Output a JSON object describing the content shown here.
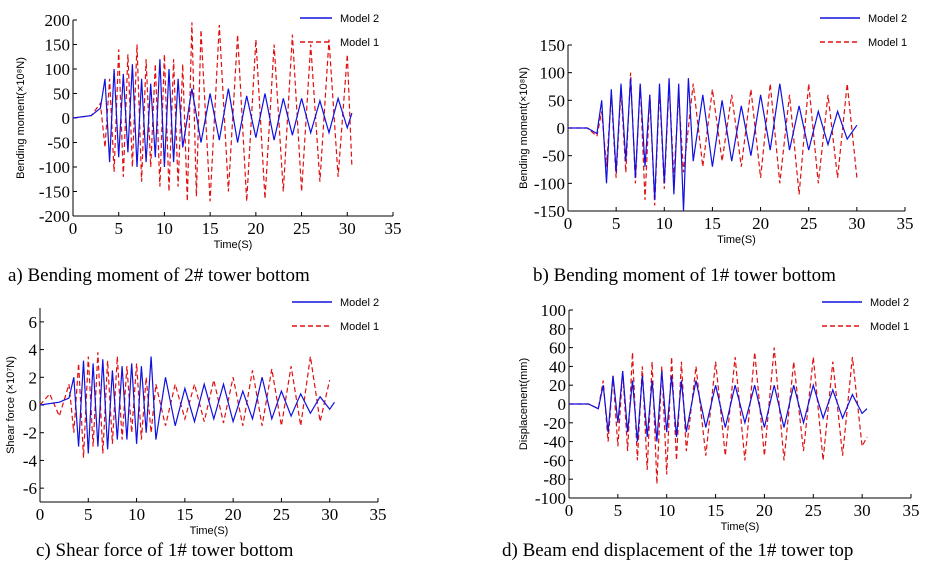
{
  "colors": {
    "model2": "#1010e0",
    "model1": "#e01010"
  },
  "legend": {
    "model2": "Model 2",
    "model1": "Model 1"
  },
  "captions": {
    "a": "a) Bending moment of 2# tower bottom",
    "b": "b) Bending moment of 1# tower bottom",
    "c": "c) Shear force of 1# tower bottom",
    "d": "d) Beam end displacement of the 1# tower top"
  },
  "chart_data": [
    {
      "id": "a",
      "type": "line",
      "xlabel": "Time(S)",
      "ylabel": "Bending moment(×10⁸N)",
      "xlim": [
        0,
        35
      ],
      "ylim": [
        -200,
        200
      ],
      "xticks": [
        0,
        5,
        10,
        15,
        20,
        25,
        30,
        35
      ],
      "yticks": [
        200,
        150,
        100,
        50,
        0,
        -50,
        -100,
        -150,
        -200
      ],
      "grid": false,
      "legend_position": "top-right",
      "series": [
        {
          "name": "Model 2",
          "style": "solid",
          "color": "#1010e0",
          "x": [
            0,
            2,
            3,
            3.5,
            4,
            4.5,
            5,
            5.5,
            6,
            6.5,
            7,
            7.5,
            8,
            8.5,
            9,
            9.5,
            10,
            10.5,
            11,
            11.5,
            12,
            13,
            14,
            15,
            16,
            17,
            18,
            19,
            20,
            21,
            22,
            23,
            24,
            25,
            26,
            27,
            28,
            29,
            30,
            30.5
          ],
          "y": [
            0,
            5,
            20,
            80,
            -90,
            100,
            -80,
            90,
            -70,
            110,
            -100,
            80,
            -90,
            70,
            -80,
            120,
            -100,
            100,
            -90,
            80,
            -60,
            60,
            -50,
            50,
            -45,
            60,
            -50,
            45,
            -40,
            50,
            -45,
            40,
            -35,
            40,
            -30,
            35,
            -30,
            40,
            -20,
            10
          ]
        },
        {
          "name": "Model 1",
          "style": "dashed",
          "color": "#e01010",
          "x": [
            0,
            2,
            3,
            3.5,
            4,
            4.5,
            5,
            5.5,
            6,
            6.5,
            7,
            7.5,
            8,
            8.5,
            9,
            9.5,
            10,
            10.5,
            11,
            11.5,
            12,
            12.5,
            13,
            13.5,
            14,
            15,
            16,
            17,
            18,
            19,
            20,
            21,
            22,
            23,
            24,
            25,
            26,
            27,
            28,
            29,
            30,
            30.5
          ],
          "y": [
            0,
            5,
            30,
            -60,
            80,
            -110,
            140,
            -120,
            130,
            -100,
            150,
            -130,
            120,
            -100,
            110,
            -140,
            130,
            -150,
            120,
            -140,
            110,
            -170,
            195,
            -160,
            180,
            -170,
            190,
            -150,
            170,
            -170,
            160,
            -165,
            150,
            -150,
            170,
            -150,
            150,
            -130,
            160,
            -120,
            130,
            -100
          ]
        }
      ]
    },
    {
      "id": "b",
      "type": "line",
      "xlabel": "Time(S)",
      "ylabel": "Bending moment(×10⁸N)",
      "xlim": [
        0,
        35
      ],
      "ylim": [
        -150,
        150
      ],
      "xticks": [
        0,
        5,
        10,
        15,
        20,
        25,
        30,
        35
      ],
      "yticks": [
        150,
        100,
        50,
        0,
        -50,
        -100,
        -150
      ],
      "grid": false,
      "legend_position": "top-right",
      "series": [
        {
          "name": "Model 2",
          "style": "solid",
          "color": "#1010e0",
          "x": [
            0,
            2,
            3,
            3.5,
            4,
            4.5,
            5,
            5.5,
            6,
            6.5,
            7,
            7.5,
            8,
            8.5,
            9,
            9.5,
            10,
            10.5,
            11,
            11.5,
            12,
            12.5,
            13,
            14,
            15,
            16,
            17,
            18,
            19,
            20,
            21,
            22,
            23,
            24,
            25,
            26,
            27,
            28,
            29,
            30
          ],
          "y": [
            0,
            0,
            -10,
            50,
            -100,
            70,
            -80,
            80,
            -60,
            90,
            -90,
            80,
            -70,
            60,
            -130,
            80,
            -100,
            90,
            -120,
            80,
            -150,
            90,
            -60,
            60,
            -70,
            50,
            -60,
            40,
            -50,
            60,
            -40,
            80,
            -40,
            40,
            -40,
            30,
            -30,
            30,
            -20,
            5
          ]
        },
        {
          "name": "Model 1",
          "style": "dashed",
          "color": "#e01010",
          "x": [
            0,
            2,
            3,
            3.5,
            4,
            4.5,
            5,
            5.5,
            6,
            6.5,
            7,
            7.5,
            8,
            8.5,
            9,
            9.5,
            10,
            10.5,
            11,
            11.5,
            12,
            13,
            14,
            15,
            16,
            17,
            18,
            19,
            20,
            21,
            22,
            23,
            24,
            25,
            26,
            27,
            28,
            29,
            30
          ],
          "y": [
            0,
            0,
            -15,
            30,
            -70,
            60,
            -90,
            70,
            -80,
            100,
            -100,
            80,
            -130,
            60,
            -140,
            70,
            -110,
            80,
            -90,
            60,
            -80,
            80,
            -70,
            70,
            -60,
            60,
            -70,
            70,
            -90,
            80,
            -100,
            60,
            -120,
            80,
            -100,
            60,
            -90,
            80,
            -90
          ]
        }
      ]
    },
    {
      "id": "c",
      "type": "line",
      "xlabel": "Time(S)",
      "ylabel": "Shear force (×10⁷N)",
      "xlim": [
        0,
        35
      ],
      "ylim": [
        -7,
        7
      ],
      "xticks": [
        0,
        5,
        10,
        15,
        20,
        25,
        30,
        35
      ],
      "yticks": [
        6,
        4,
        2,
        0,
        -2,
        -4,
        -6
      ],
      "grid": false,
      "legend_position": "top-right",
      "series": [
        {
          "name": "Model 2",
          "style": "solid",
          "color": "#1010e0",
          "x": [
            0,
            2,
            3,
            3.5,
            4,
            4.5,
            5,
            5.5,
            6,
            6.5,
            7,
            7.5,
            8,
            8.5,
            9,
            9.5,
            10,
            10.5,
            11,
            11.5,
            12,
            13,
            14,
            15,
            16,
            17,
            18,
            19,
            20,
            21,
            22,
            23,
            24,
            25,
            26,
            27,
            28,
            29,
            30,
            30.5
          ],
          "y": [
            0,
            0.2,
            0.5,
            2.0,
            -3.0,
            3.2,
            -3.5,
            3.0,
            -3.0,
            3.3,
            -3.2,
            2.5,
            -2.5,
            2.8,
            -2.5,
            3.0,
            -2.8,
            2.8,
            -2.0,
            3.5,
            -2.5,
            2.0,
            -1.5,
            1.2,
            -1.2,
            1.5,
            -1.0,
            1.5,
            -1.2,
            1.0,
            -1.0,
            2.0,
            -1.0,
            1.0,
            -0.8,
            0.8,
            -0.6,
            0.6,
            -0.3,
            0.2
          ]
        },
        {
          "name": "Model 1",
          "style": "dashed",
          "color": "#e01010",
          "x": [
            0,
            1,
            2,
            3,
            3.5,
            4,
            4.5,
            5,
            5.5,
            6,
            6.5,
            7,
            7.5,
            8,
            8.5,
            9,
            9.5,
            10,
            10.5,
            11,
            11.5,
            12,
            13,
            14,
            15,
            16,
            17,
            18,
            19,
            20,
            21,
            22,
            23,
            24,
            25,
            26,
            27,
            28,
            29,
            30
          ],
          "y": [
            0,
            0.8,
            -0.8,
            1.5,
            -2.0,
            3.0,
            -3.8,
            3.5,
            -3.0,
            3.8,
            -3.5,
            3.2,
            -2.8,
            3.5,
            -2.5,
            2.8,
            -2.0,
            3.0,
            -2.5,
            2.0,
            -2.0,
            1.5,
            -1.5,
            1.5,
            -1.0,
            1.5,
            -1.2,
            1.8,
            -1.3,
            2.0,
            -1.5,
            2.5,
            -1.5,
            2.6,
            -1.5,
            2.8,
            -1.5,
            3.5,
            -1.2,
            1.8
          ]
        }
      ]
    },
    {
      "id": "d",
      "type": "line",
      "xlabel": "Time(S)",
      "ylabel": "Displacement(mm)",
      "xlim": [
        0,
        35
      ],
      "ylim": [
        -100,
        100
      ],
      "xticks": [
        0,
        5,
        10,
        15,
        20,
        25,
        30,
        35
      ],
      "yticks": [
        100,
        80,
        60,
        40,
        20,
        0,
        -20,
        -40,
        -60,
        -80,
        -100
      ],
      "grid": false,
      "legend_position": "top-right",
      "series": [
        {
          "name": "Model 2",
          "style": "solid",
          "color": "#1010e0",
          "x": [
            0,
            2,
            3,
            3.5,
            4,
            4.5,
            5,
            5.5,
            6,
            6.5,
            7,
            7.5,
            8,
            8.5,
            9,
            9.5,
            10,
            10.5,
            11,
            11.5,
            12,
            13,
            14,
            15,
            16,
            17,
            18,
            19,
            20,
            21,
            22,
            23,
            24,
            25,
            26,
            27,
            28,
            29,
            30,
            30.5
          ],
          "y": [
            0,
            0,
            -5,
            20,
            -30,
            30,
            -20,
            35,
            -30,
            25,
            -40,
            30,
            -35,
            25,
            -40,
            35,
            -30,
            30,
            -35,
            25,
            -30,
            25,
            -25,
            20,
            -25,
            20,
            -20,
            20,
            -25,
            20,
            -25,
            20,
            -20,
            20,
            -15,
            15,
            -15,
            10,
            -10,
            -5
          ]
        },
        {
          "name": "Model 1",
          "style": "dashed",
          "color": "#e01010",
          "x": [
            0,
            2,
            3,
            3.5,
            4,
            4.5,
            5,
            5.5,
            6,
            6.5,
            7,
            7.5,
            8,
            8.5,
            9,
            9.5,
            10,
            10.5,
            11,
            11.5,
            12,
            13,
            14,
            15,
            16,
            17,
            18,
            19,
            20,
            21,
            22,
            23,
            24,
            25,
            26,
            27,
            28,
            29,
            30,
            30.5
          ],
          "y": [
            0,
            0,
            -5,
            25,
            -40,
            30,
            -45,
            35,
            -50,
            55,
            -60,
            40,
            -70,
            45,
            -85,
            40,
            -75,
            50,
            -60,
            45,
            -50,
            40,
            -55,
            45,
            -55,
            50,
            -60,
            55,
            -55,
            60,
            -60,
            45,
            -50,
            50,
            -60,
            45,
            -55,
            50,
            -45,
            -35
          ]
        }
      ]
    }
  ]
}
